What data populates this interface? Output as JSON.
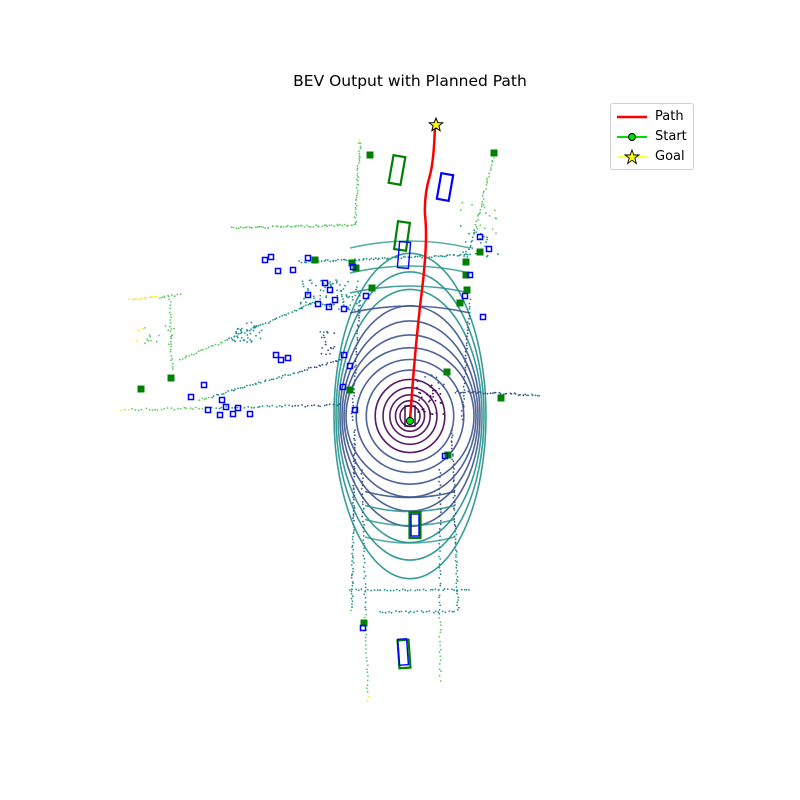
{
  "figure": {
    "title": "BEV Output with Planned Path"
  },
  "legend": {
    "items": [
      {
        "label": "Path",
        "color": "#ff0000",
        "marker": "line"
      },
      {
        "label": "Start",
        "color": "#00dd00",
        "marker": "circle"
      },
      {
        "label": "Goal",
        "color": "#ffff00",
        "marker": "star"
      }
    ]
  },
  "colors": {
    "path": "#ff0000",
    "start": "#00dd00",
    "goal": "#ffff00",
    "gt_box": "#008000",
    "pred_box": "#0000ff",
    "colormap": [
      "#440154",
      "#3b528b",
      "#21918c",
      "#5ec962",
      "#fde725"
    ]
  }
}
